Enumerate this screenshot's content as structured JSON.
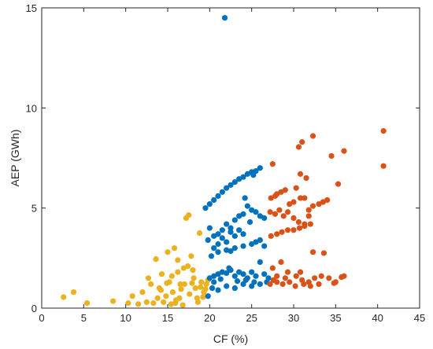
{
  "chart_data": {
    "type": "scatter",
    "xlabel": "CF (%)",
    "ylabel": "AEP (GWh)",
    "xlim": [
      0,
      45
    ],
    "ylim": [
      0,
      15
    ],
    "xticks": [
      0,
      5,
      10,
      15,
      20,
      25,
      30,
      35,
      40,
      45
    ],
    "yticks": [
      0,
      5,
      10,
      15
    ],
    "grid": false,
    "legend": "none",
    "series": [
      {
        "color": "#edb120",
        "points": [
          [
            2.6,
            0.55
          ],
          [
            3.8,
            0.8
          ],
          [
            5.4,
            0.25
          ],
          [
            8.5,
            0.35
          ],
          [
            10.3,
            0.25
          ],
          [
            10.8,
            0.6
          ],
          [
            11.5,
            0.2
          ],
          [
            12.0,
            0.8
          ],
          [
            12.5,
            0.3
          ],
          [
            12.7,
            1.5
          ],
          [
            13.0,
            1.2
          ],
          [
            13.3,
            0.25
          ],
          [
            13.6,
            2.45
          ],
          [
            14.0,
            1.0
          ],
          [
            14.3,
            1.7
          ],
          [
            14.5,
            0.3
          ],
          [
            14.8,
            0.6
          ],
          [
            15.0,
            2.8
          ],
          [
            15.2,
            1.3
          ],
          [
            15.4,
            0.2
          ],
          [
            15.6,
            0.8
          ],
          [
            15.8,
            3.0
          ],
          [
            16.0,
            0.4
          ],
          [
            16.2,
            1.8
          ],
          [
            16.4,
            0.5
          ],
          [
            16.6,
            0.95
          ],
          [
            16.8,
            0.15
          ],
          [
            17.0,
            1.2
          ],
          [
            17.2,
            4.5
          ],
          [
            17.5,
            4.65
          ],
          [
            17.8,
            2.6
          ],
          [
            18.0,
            1.9
          ],
          [
            18.3,
            1.0
          ],
          [
            18.5,
            0.5
          ],
          [
            18.8,
            3.75
          ],
          [
            19.0,
            1.3
          ],
          [
            19.3,
            0.8
          ],
          [
            19.6,
            1.2
          ],
          [
            19.8,
            1.4
          ],
          [
            17.6,
            0.7
          ],
          [
            18.1,
            1.5
          ],
          [
            18.6,
            0.3
          ],
          [
            16.2,
            2.4
          ],
          [
            15.5,
            1.6
          ],
          [
            14.2,
            0.9
          ],
          [
            17.4,
            2.1
          ],
          [
            19.2,
            0.55
          ],
          [
            16.5,
            1.2
          ],
          [
            18.9,
            1.05
          ],
          [
            17.9,
            1.25
          ],
          [
            19.5,
            0.95
          ],
          [
            14.9,
            1.25
          ],
          [
            13.8,
            0.5
          ],
          [
            16.9,
            2.0
          ],
          [
            15.9,
            0.25
          ]
        ]
      },
      {
        "color": "#0072bd",
        "points": [
          [
            21.8,
            14.5
          ],
          [
            19.5,
            5.0
          ],
          [
            20.0,
            5.2
          ],
          [
            20.5,
            5.4
          ],
          [
            21.0,
            5.6
          ],
          [
            21.5,
            5.8
          ],
          [
            22.0,
            6.0
          ],
          [
            22.5,
            6.15
          ],
          [
            23.0,
            6.3
          ],
          [
            23.5,
            6.45
          ],
          [
            24.0,
            6.55
          ],
          [
            24.5,
            6.7
          ],
          [
            25.0,
            6.8
          ],
          [
            25.5,
            6.85
          ],
          [
            26.0,
            7.0
          ],
          [
            25.2,
            6.65
          ],
          [
            20.0,
            4.0
          ],
          [
            20.5,
            3.6
          ],
          [
            21.0,
            3.7
          ],
          [
            21.5,
            3.9
          ],
          [
            22.0,
            4.2
          ],
          [
            22.5,
            4.0
          ],
          [
            23.0,
            4.4
          ],
          [
            23.5,
            4.6
          ],
          [
            24.0,
            4.7
          ],
          [
            24.5,
            5.1
          ],
          [
            25.0,
            4.9
          ],
          [
            25.5,
            4.8
          ],
          [
            26.0,
            4.6
          ],
          [
            24.8,
            4.3
          ],
          [
            24.2,
            5.5
          ],
          [
            19.8,
            3.4
          ],
          [
            20.5,
            3.0
          ],
          [
            21.0,
            3.2
          ],
          [
            21.5,
            3.5
          ],
          [
            22.0,
            3.3
          ],
          [
            22.5,
            3.8
          ],
          [
            23.0,
            3.6
          ],
          [
            23.5,
            3.9
          ],
          [
            24.0,
            3.7
          ],
          [
            20.2,
            2.6
          ],
          [
            21.0,
            2.8
          ],
          [
            22.0,
            2.9
          ],
          [
            23.0,
            3.0
          ],
          [
            24.0,
            3.1
          ],
          [
            25.0,
            3.2
          ],
          [
            25.5,
            3.3
          ],
          [
            26.0,
            3.4
          ],
          [
            26.5,
            4.5
          ],
          [
            26.5,
            3.1
          ],
          [
            22.5,
            2.85
          ],
          [
            20.0,
            1.5
          ],
          [
            20.5,
            1.6
          ],
          [
            21.0,
            1.7
          ],
          [
            21.5,
            1.8
          ],
          [
            22.0,
            1.75
          ],
          [
            22.5,
            1.9
          ],
          [
            23.0,
            1.6
          ],
          [
            23.5,
            1.8
          ],
          [
            24.0,
            1.7
          ],
          [
            24.5,
            1.5
          ],
          [
            25.0,
            1.8
          ],
          [
            25.5,
            1.6
          ],
          [
            26.0,
            2.3
          ],
          [
            26.5,
            1.7
          ],
          [
            27.0,
            1.5
          ],
          [
            20.3,
            1.0
          ],
          [
            21.0,
            0.9
          ],
          [
            22.0,
            1.1
          ],
          [
            23.0,
            1.0
          ],
          [
            24.0,
            1.2
          ],
          [
            25.0,
            1.1
          ],
          [
            26.0,
            1.2
          ],
          [
            26.8,
            1.3
          ],
          [
            19.8,
            0.6
          ],
          [
            20.5,
            1.3
          ],
          [
            21.3,
            1.45
          ],
          [
            22.3,
            2.0
          ],
          [
            23.3,
            1.35
          ],
          [
            24.3,
            1.4
          ],
          [
            25.3,
            1.3
          ]
        ]
      },
      {
        "color": "#d95319",
        "points": [
          [
            40.7,
            8.85
          ],
          [
            40.7,
            7.1
          ],
          [
            36.0,
            7.85
          ],
          [
            34.5,
            7.6
          ],
          [
            35.3,
            6.2
          ],
          [
            32.3,
            8.6
          ],
          [
            31.0,
            8.3
          ],
          [
            30.6,
            8.05
          ],
          [
            27.5,
            7.2
          ],
          [
            28.0,
            5.7
          ],
          [
            28.5,
            5.8
          ],
          [
            29.0,
            5.9
          ],
          [
            27.8,
            5.6
          ],
          [
            27.3,
            5.5
          ],
          [
            29.5,
            5.2
          ],
          [
            30.0,
            5.3
          ],
          [
            30.8,
            5.5
          ],
          [
            31.3,
            5.5
          ],
          [
            31.8,
            4.9
          ],
          [
            32.3,
            5.1
          ],
          [
            33.0,
            5.2
          ],
          [
            33.5,
            5.3
          ],
          [
            34.0,
            5.4
          ],
          [
            30.8,
            6.7
          ],
          [
            31.5,
            6.5
          ],
          [
            30.3,
            6.0
          ],
          [
            27.2,
            4.8
          ],
          [
            27.8,
            4.7
          ],
          [
            28.3,
            4.9
          ],
          [
            28.8,
            4.6
          ],
          [
            29.3,
            4.8
          ],
          [
            30.0,
            4.5
          ],
          [
            30.6,
            4.3
          ],
          [
            31.3,
            4.2
          ],
          [
            31.8,
            4.6
          ],
          [
            27.3,
            3.6
          ],
          [
            28.0,
            3.7
          ],
          [
            28.6,
            3.8
          ],
          [
            29.3,
            3.9
          ],
          [
            30.0,
            3.9
          ],
          [
            30.7,
            4.0
          ],
          [
            31.3,
            4.1
          ],
          [
            32.0,
            4.2
          ],
          [
            32.3,
            2.8
          ],
          [
            33.6,
            2.75
          ],
          [
            27.5,
            2.0
          ],
          [
            28.5,
            2.3
          ],
          [
            29.3,
            1.8
          ],
          [
            30.3,
            1.6
          ],
          [
            31.0,
            1.4
          ],
          [
            31.8,
            1.3
          ],
          [
            32.5,
            1.5
          ],
          [
            33.3,
            1.6
          ],
          [
            34.2,
            1.5
          ],
          [
            35.0,
            1.3
          ],
          [
            35.7,
            1.55
          ],
          [
            36.0,
            1.6
          ],
          [
            27.2,
            1.2
          ],
          [
            28.0,
            1.3
          ],
          [
            28.7,
            1.2
          ],
          [
            29.5,
            1.3
          ],
          [
            30.2,
            1.1
          ],
          [
            31.2,
            1.2
          ],
          [
            32.0,
            1.1
          ],
          [
            33.0,
            1.2
          ],
          [
            34.8,
            1.25
          ],
          [
            28.0,
            1.6
          ],
          [
            29.0,
            1.5
          ],
          [
            30.8,
            1.8
          ],
          [
            27.6,
            1.4
          ]
        ]
      }
    ]
  }
}
